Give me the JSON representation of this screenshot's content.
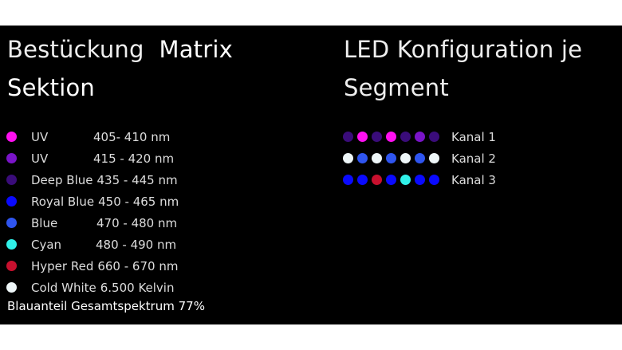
{
  "left": {
    "title_part1": "Bestückung",
    "title_part2": "Matrix Sektion",
    "legend": [
      {
        "name": "UV",
        "range": "405- 410 nm",
        "color": "#ff10f0",
        "pad": "78px"
      },
      {
        "name": "UV",
        "range": "415 - 420 nm",
        "color": "#7a14c8",
        "pad": "78px"
      },
      {
        "name": "Deep Blue",
        "range": "435 - 445 nm",
        "color": "#3a0c7a",
        "pad": "0"
      },
      {
        "name": "Royal Blue",
        "range": "450 - 465 nm",
        "color": "#0a0aff",
        "pad": "0"
      },
      {
        "name": "Blue",
        "range": "470 - 480 nm",
        "color": "#2f55f0",
        "pad": "82px"
      },
      {
        "name": "Cyan",
        "range": "480 - 490 nm",
        "color": "#30f0e8",
        "pad": "81px"
      },
      {
        "name": "Hyper Red",
        "range": "660 - 670 nm",
        "color": "#c8102e",
        "pad": "0"
      },
      {
        "name": "Cold White",
        "range": "6.500 Kelvin",
        "color": "#eef6f8",
        "pad": "0"
      }
    ],
    "summary": "Blauanteil Gesamtspektrum 77%"
  },
  "right": {
    "title": "LED Konfiguration je Segment",
    "channels": [
      {
        "label": "Kanal 1",
        "leds": [
          "#3a0c7a",
          "#ff10f0",
          "#3a0c7a",
          "#ff10f0",
          "#3a0c7a",
          "#7a14c8",
          "#3a0c7a"
        ]
      },
      {
        "label": "Kanal 2",
        "leds": [
          "#eef6f8",
          "#2f55f0",
          "#eef6f8",
          "#2f55f0",
          "#eef6f8",
          "#2f55f0",
          "#eef6f8"
        ]
      },
      {
        "label": "Kanal 3",
        "leds": [
          "#0a0aff",
          "#0a0aff",
          "#c8102e",
          "#0a0aff",
          "#30f0e8",
          "#0a0aff",
          "#0a0aff"
        ]
      }
    ]
  }
}
